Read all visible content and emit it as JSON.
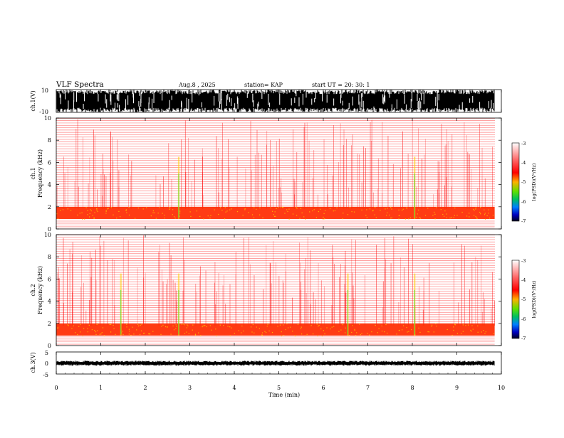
{
  "header": {
    "title": "VLF Spectra",
    "date": "Aug.8 , 2025",
    "station": "station= KAP",
    "start_ut": "start UT = 20: 30: 1"
  },
  "colors": {
    "waveform": "#000000",
    "background_noise": "#ff0000",
    "band_intense": "#ff2a00",
    "highlight": "#ffd000",
    "burst": "#40e040"
  },
  "chart_data": [
    {
      "type": "line",
      "name": "ch1-waveform",
      "ylabel": "ch.1(V)",
      "ylim": [
        -10,
        10
      ],
      "yticks": [
        "10",
        "-10"
      ],
      "xlim": [
        0,
        10
      ]
    },
    {
      "type": "heatmap",
      "name": "ch1-spectrogram",
      "ylabel": "ch.1\nFrequency (kHz)",
      "ylabel_lines": [
        "ch.1",
        "Frequency (kHz)"
      ],
      "ylim": [
        0,
        10
      ],
      "yticks": [
        "0",
        "2",
        "4",
        "6",
        "8",
        "10"
      ],
      "xlim": [
        0,
        10
      ],
      "data_end_min": 9.85,
      "intense_band_khz": [
        0.9,
        2.0
      ],
      "burst_times_min": [
        2.75,
        8.05
      ],
      "colorbar": {
        "label": "log(PSD)(V²/Hz)",
        "ticks": [
          "-3",
          "-4",
          "-5",
          "-6",
          "-7"
        ],
        "range": [
          -7,
          -3
        ]
      }
    },
    {
      "type": "heatmap",
      "name": "ch2-spectrogram",
      "ylabel": "ch.2\nFrequency (kHz)",
      "ylabel_lines": [
        "ch.2",
        "Frequency (kHz)"
      ],
      "ylim": [
        0,
        10
      ],
      "yticks": [
        "0",
        "2",
        "4",
        "6",
        "8",
        "10"
      ],
      "xlim": [
        0,
        10
      ],
      "data_end_min": 9.85,
      "intense_band_khz": [
        0.9,
        2.0
      ],
      "burst_times_min": [
        1.45,
        2.75,
        6.55,
        8.05
      ],
      "colorbar": {
        "label": "log(PSD)(V²/Hz)",
        "ticks": [
          "-3",
          "-4",
          "-5",
          "-6",
          "-7"
        ],
        "range": [
          -7,
          -3
        ]
      }
    },
    {
      "type": "line",
      "name": "ch3-waveform",
      "ylabel": "ch.3(V)",
      "ylim": [
        -5,
        5
      ],
      "yticks": [
        "5",
        "0",
        "-5"
      ],
      "xlim": [
        0,
        10
      ],
      "xlabel": "Time (min)",
      "xticks": [
        "0",
        "1",
        "2",
        "3",
        "4",
        "5",
        "6",
        "7",
        "8",
        "9",
        "10"
      ]
    }
  ]
}
